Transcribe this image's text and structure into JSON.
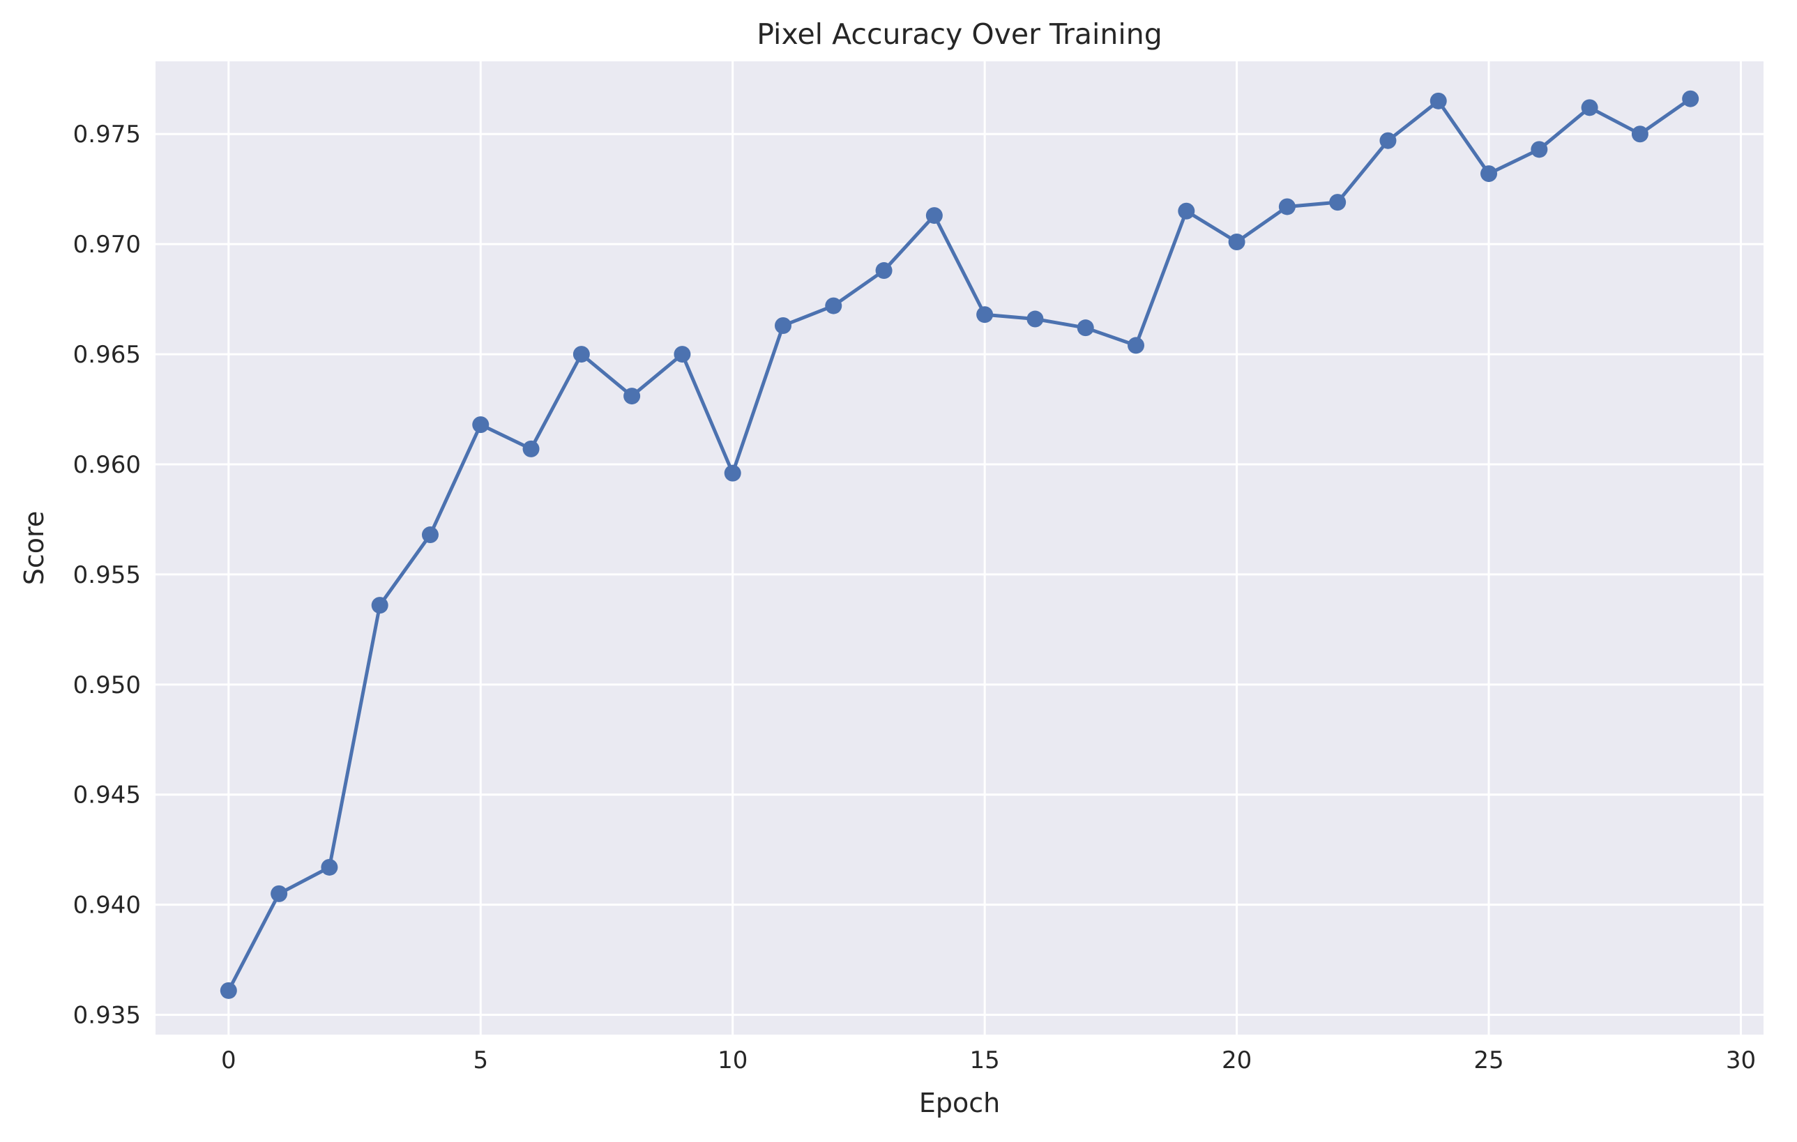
{
  "chart_data": {
    "type": "line",
    "title": "Pixel Accuracy Over Training",
    "xlabel": "Epoch",
    "ylabel": "Score",
    "xlim": [
      -1.45,
      30.45
    ],
    "ylim": [
      0.9341,
      0.9783
    ],
    "grid": true,
    "legend": "none",
    "x_ticks": [
      0,
      5,
      10,
      15,
      20,
      25,
      30
    ],
    "x_tick_labels": [
      "0",
      "5",
      "10",
      "15",
      "20",
      "25",
      "30"
    ],
    "y_ticks": [
      0.935,
      0.94,
      0.945,
      0.95,
      0.955,
      0.96,
      0.965,
      0.97,
      0.975
    ],
    "y_tick_labels": [
      "0.935",
      "0.940",
      "0.945",
      "0.950",
      "0.955",
      "0.960",
      "0.965",
      "0.970",
      "0.975"
    ],
    "series": [
      {
        "color": "#4c72b0",
        "marker": "circle",
        "x": [
          0,
          1,
          2,
          3,
          4,
          5,
          6,
          7,
          8,
          9,
          10,
          11,
          12,
          13,
          14,
          15,
          16,
          17,
          18,
          19,
          20,
          21,
          22,
          23,
          24,
          25,
          26,
          27,
          28,
          29
        ],
        "values": [
          0.9361,
          0.9405,
          0.9417,
          0.9536,
          0.9568,
          0.9618,
          0.9607,
          0.965,
          0.9631,
          0.965,
          0.9596,
          0.9663,
          0.9672,
          0.9688,
          0.9713,
          0.9668,
          0.9666,
          0.9662,
          0.9654,
          0.9715,
          0.9701,
          0.9717,
          0.9719,
          0.9747,
          0.9765,
          0.9732,
          0.9743,
          0.9762,
          0.975,
          0.9766
        ]
      }
    ]
  },
  "colors": {
    "plot_background": "#eaeaf2",
    "grid": "#ffffff",
    "line": "#4c72b0"
  }
}
